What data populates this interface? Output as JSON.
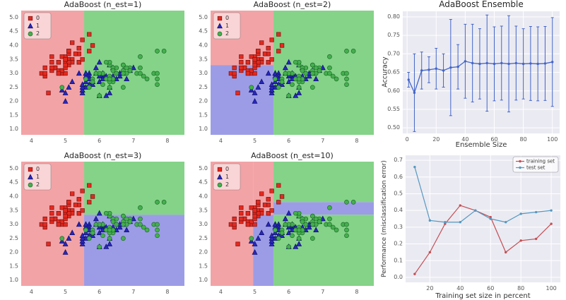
{
  "colors": {
    "region0": "#f2a3a6",
    "region1": "#9c9ce6",
    "region2": "#84d388",
    "marker0": "#e42a1f",
    "marker0_edge": "#7d0f0f",
    "marker1": "#2828bd",
    "marker1_edge": "#0d0d6b",
    "marker2": "#44b04e",
    "marker2_edge": "#1f6b2a",
    "axes_bg": "#eaeaf2",
    "grid": "#ffffff",
    "errorbar_line": "#4365c8",
    "train": "#c44e52",
    "test": "#5598c0",
    "tick_text": "#555555",
    "title_text": "#262626"
  },
  "chart_data": {
    "scatter_axes": {
      "xlim": [
        3.7,
        8.5
      ],
      "ylim": [
        0.8,
        5.25
      ],
      "xticks": [
        4,
        5,
        6,
        7,
        8
      ],
      "yticks": [
        1.0,
        1.5,
        2.0,
        2.5,
        3.0,
        3.5,
        4.0,
        4.5,
        5.0
      ]
    },
    "iris": {
      "class0": [
        [
          5.1,
          3.5
        ],
        [
          4.9,
          3.0
        ],
        [
          4.7,
          3.2
        ],
        [
          4.6,
          3.1
        ],
        [
          5.0,
          3.6
        ],
        [
          5.4,
          3.9
        ],
        [
          4.6,
          3.4
        ],
        [
          5.0,
          3.4
        ],
        [
          4.4,
          2.9
        ],
        [
          4.9,
          3.1
        ],
        [
          5.4,
          3.7
        ],
        [
          4.8,
          3.4
        ],
        [
          4.8,
          3.0
        ],
        [
          4.3,
          3.0
        ],
        [
          5.8,
          4.0
        ],
        [
          5.7,
          4.4
        ],
        [
          5.4,
          3.9
        ],
        [
          5.1,
          3.5
        ],
        [
          5.7,
          3.8
        ],
        [
          5.1,
          3.8
        ],
        [
          5.4,
          3.4
        ],
        [
          5.1,
          3.7
        ],
        [
          4.6,
          3.6
        ],
        [
          5.1,
          3.3
        ],
        [
          4.8,
          3.4
        ],
        [
          5.0,
          3.0
        ],
        [
          5.0,
          3.4
        ],
        [
          5.2,
          3.5
        ],
        [
          5.2,
          3.4
        ],
        [
          4.7,
          3.2
        ],
        [
          4.8,
          3.1
        ],
        [
          5.4,
          3.4
        ],
        [
          5.2,
          4.1
        ],
        [
          5.5,
          4.2
        ],
        [
          4.9,
          3.1
        ],
        [
          5.0,
          3.2
        ],
        [
          5.5,
          3.5
        ],
        [
          4.9,
          3.6
        ],
        [
          4.4,
          3.0
        ],
        [
          5.1,
          3.4
        ],
        [
          5.0,
          3.5
        ],
        [
          4.5,
          2.3
        ],
        [
          4.4,
          3.2
        ],
        [
          5.0,
          3.5
        ],
        [
          5.1,
          3.8
        ],
        [
          4.8,
          3.0
        ],
        [
          5.1,
          3.8
        ],
        [
          4.6,
          3.2
        ],
        [
          5.3,
          3.7
        ],
        [
          5.0,
          3.3
        ]
      ],
      "class1": [
        [
          7.0,
          3.2
        ],
        [
          6.4,
          3.2
        ],
        [
          6.9,
          3.1
        ],
        [
          5.5,
          2.3
        ],
        [
          6.5,
          2.8
        ],
        [
          5.7,
          2.8
        ],
        [
          6.3,
          3.3
        ],
        [
          4.9,
          2.4
        ],
        [
          6.6,
          2.9
        ],
        [
          5.2,
          2.7
        ],
        [
          5.0,
          2.0
        ],
        [
          5.9,
          3.0
        ],
        [
          6.0,
          2.2
        ],
        [
          6.1,
          2.9
        ],
        [
          5.6,
          2.9
        ],
        [
          6.7,
          3.1
        ],
        [
          5.6,
          3.0
        ],
        [
          5.8,
          2.7
        ],
        [
          6.2,
          2.2
        ],
        [
          5.6,
          2.5
        ],
        [
          5.9,
          3.2
        ],
        [
          6.1,
          2.8
        ],
        [
          6.3,
          2.5
        ],
        [
          6.1,
          2.8
        ],
        [
          6.4,
          2.9
        ],
        [
          6.6,
          3.0
        ],
        [
          6.8,
          2.8
        ],
        [
          6.7,
          3.0
        ],
        [
          6.0,
          2.9
        ],
        [
          5.7,
          2.6
        ],
        [
          5.5,
          2.4
        ],
        [
          5.5,
          2.4
        ],
        [
          5.8,
          2.7
        ],
        [
          6.0,
          2.7
        ],
        [
          5.4,
          3.0
        ],
        [
          6.0,
          3.4
        ],
        [
          6.7,
          3.1
        ],
        [
          6.3,
          2.3
        ],
        [
          5.6,
          3.0
        ],
        [
          5.5,
          2.5
        ],
        [
          5.5,
          2.6
        ],
        [
          6.1,
          3.0
        ],
        [
          5.8,
          2.6
        ],
        [
          5.0,
          2.3
        ],
        [
          5.6,
          2.7
        ],
        [
          5.7,
          3.0
        ],
        [
          5.7,
          2.9
        ],
        [
          6.2,
          2.9
        ],
        [
          5.1,
          2.5
        ],
        [
          5.7,
          2.8
        ]
      ],
      "class2": [
        [
          6.3,
          3.3
        ],
        [
          5.8,
          2.7
        ],
        [
          7.1,
          3.0
        ],
        [
          6.3,
          2.9
        ],
        [
          6.5,
          3.0
        ],
        [
          7.6,
          3.0
        ],
        [
          4.9,
          2.5
        ],
        [
          7.3,
          2.9
        ],
        [
          6.7,
          2.5
        ],
        [
          7.2,
          3.6
        ],
        [
          6.5,
          3.2
        ],
        [
          6.4,
          2.7
        ],
        [
          6.8,
          3.0
        ],
        [
          5.7,
          2.5
        ],
        [
          5.8,
          2.8
        ],
        [
          6.4,
          3.2
        ],
        [
          6.5,
          3.0
        ],
        [
          7.7,
          3.8
        ],
        [
          7.7,
          2.6
        ],
        [
          6.0,
          2.2
        ],
        [
          6.9,
          3.2
        ],
        [
          5.6,
          2.8
        ],
        [
          7.7,
          2.8
        ],
        [
          6.3,
          2.7
        ],
        [
          6.7,
          3.3
        ],
        [
          7.2,
          3.2
        ],
        [
          6.2,
          2.8
        ],
        [
          6.1,
          3.0
        ],
        [
          6.4,
          2.8
        ],
        [
          7.2,
          3.0
        ],
        [
          7.4,
          2.8
        ],
        [
          7.9,
          3.8
        ],
        [
          6.4,
          2.8
        ],
        [
          6.3,
          2.8
        ],
        [
          6.1,
          2.6
        ],
        [
          7.7,
          3.0
        ],
        [
          6.3,
          3.4
        ],
        [
          6.4,
          3.1
        ],
        [
          6.0,
          3.0
        ],
        [
          6.9,
          3.1
        ],
        [
          6.7,
          3.1
        ],
        [
          6.9,
          3.1
        ],
        [
          5.8,
          2.7
        ],
        [
          6.8,
          3.2
        ],
        [
          6.7,
          3.3
        ],
        [
          6.7,
          3.0
        ],
        [
          6.3,
          2.5
        ],
        [
          6.5,
          3.0
        ],
        [
          6.2,
          3.4
        ],
        [
          5.9,
          3.0
        ]
      ]
    },
    "charts": {
      "nest1": {
        "type": "scatter",
        "title": "AdaBoost (n_est=1)",
        "legend": [
          "0",
          "1",
          "2"
        ],
        "regions": [
          {
            "x0": 3.7,
            "x1": 5.55,
            "y0": 0.8,
            "y1": 5.25,
            "c": "0"
          },
          {
            "x0": 5.55,
            "x1": 8.5,
            "y0": 0.8,
            "y1": 5.25,
            "c": "2"
          }
        ]
      },
      "nest2": {
        "type": "scatter",
        "title": "AdaBoost (n_est=2)",
        "legend": [
          "0",
          "1",
          "2"
        ],
        "regions": [
          {
            "x0": 3.7,
            "x1": 5.55,
            "y0": 3.3,
            "y1": 5.25,
            "c": "0"
          },
          {
            "x0": 3.7,
            "x1": 5.55,
            "y0": 0.8,
            "y1": 3.3,
            "c": "1"
          },
          {
            "x0": 5.55,
            "x1": 8.5,
            "y0": 0.8,
            "y1": 5.25,
            "c": "2"
          }
        ]
      },
      "nest3": {
        "type": "scatter",
        "title": "AdaBoost (n_est=3)",
        "legend": [
          "0",
          "1",
          "2"
        ],
        "regions": [
          {
            "x0": 3.7,
            "x1": 5.55,
            "y0": 0.8,
            "y1": 5.25,
            "c": "0"
          },
          {
            "x0": 5.55,
            "x1": 8.5,
            "y0": 3.35,
            "y1": 5.25,
            "c": "2"
          },
          {
            "x0": 5.55,
            "x1": 8.5,
            "y0": 0.8,
            "y1": 3.35,
            "c": "1"
          }
        ]
      },
      "nest10": {
        "type": "scatter",
        "title": "AdaBoost (n_est=10)",
        "legend": [
          "0",
          "1",
          "2"
        ],
        "regions": [
          {
            "x0": 3.7,
            "x1": 4.95,
            "y0": 0.8,
            "y1": 5.25,
            "c": "0"
          },
          {
            "x0": 4.95,
            "x1": 5.55,
            "y0": 3.35,
            "y1": 5.25,
            "c": "0"
          },
          {
            "x0": 4.95,
            "x1": 5.55,
            "y0": 0.8,
            "y1": 3.35,
            "c": "1"
          },
          {
            "x0": 5.55,
            "x1": 8.5,
            "y0": 3.8,
            "y1": 5.25,
            "c": "2"
          },
          {
            "x0": 5.55,
            "x1": 8.5,
            "y0": 3.35,
            "y1": 3.8,
            "c": "1"
          },
          {
            "x0": 5.55,
            "x1": 8.5,
            "y0": 0.8,
            "y1": 3.35,
            "c": "2"
          }
        ]
      },
      "ensemble": {
        "type": "line",
        "title": "AdaBoost Ensemble",
        "xlabel": "Ensemble Size",
        "ylabel": "Accuracy",
        "xlim": [
          -3,
          105
        ],
        "ylim": [
          0.485,
          0.815
        ],
        "xticks": [
          0,
          20,
          40,
          60,
          80,
          100
        ],
        "yticks": [
          0.5,
          0.55,
          0.6,
          0.65,
          0.7,
          0.75,
          0.8
        ],
        "x": [
          1,
          5,
          10,
          15,
          20,
          25,
          30,
          35,
          40,
          45,
          50,
          55,
          60,
          65,
          70,
          75,
          80,
          85,
          90,
          95,
          100
        ],
        "y": [
          0.63,
          0.595,
          0.655,
          0.657,
          0.66,
          0.655,
          0.663,
          0.665,
          0.68,
          0.675,
          0.673,
          0.675,
          0.673,
          0.675,
          0.673,
          0.675,
          0.673,
          0.674,
          0.673,
          0.674,
          0.678
        ],
        "err": [
          0.02,
          0.105,
          0.05,
          0.035,
          0.055,
          0.045,
          0.13,
          0.06,
          0.1,
          0.105,
          0.095,
          0.13,
          0.1,
          0.1,
          0.13,
          0.1,
          0.095,
          0.1,
          0.1,
          0.1,
          0.12
        ]
      },
      "perf": {
        "type": "line",
        "xlabel": "Training set size in percent",
        "ylabel": "Performance (misclassification error)",
        "xlim": [
          4,
          106
        ],
        "ylim": [
          -0.03,
          0.73
        ],
        "xticks": [
          20,
          40,
          60,
          80,
          100
        ],
        "yticks": [
          0.0,
          0.1,
          0.2,
          0.3,
          0.4,
          0.5,
          0.6,
          0.7
        ],
        "x": [
          10,
          20,
          30,
          40,
          50,
          60,
          70,
          80,
          90,
          100
        ],
        "series": [
          {
            "name": "training set",
            "key": "train",
            "values": [
              0.02,
              0.15,
              0.32,
              0.43,
              0.4,
              0.36,
              0.15,
              0.22,
              0.23,
              0.32
            ]
          },
          {
            "name": "test set",
            "key": "test",
            "values": [
              0.66,
              0.34,
              0.33,
              0.33,
              0.4,
              0.35,
              0.33,
              0.38,
              0.39,
              0.4
            ]
          }
        ]
      }
    }
  }
}
